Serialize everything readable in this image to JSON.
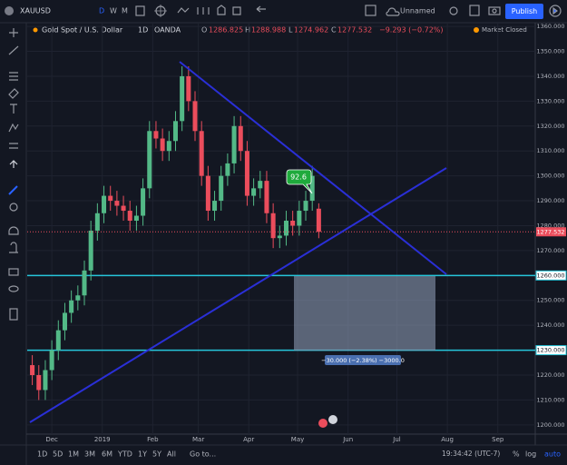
{
  "toolbar": {
    "symbol": "XAUUSD",
    "intervals": [
      "D",
      "W",
      "M"
    ],
    "layout_name": "Unnamed",
    "publish": "Publish"
  },
  "header": {
    "instrument": "Gold Spot / U.S. Dollar",
    "interval": "1D",
    "exchange": "OANDA",
    "ohlc_labels": [
      "O",
      "H",
      "L",
      "C"
    ],
    "change": "−9.293 (−0.72%)",
    "status": "Market Closed"
  },
  "chart_data": {
    "type": "candlestick",
    "x": [
      18,
      22,
      26,
      30,
      34,
      38,
      42,
      46,
      50,
      54,
      58,
      62,
      66,
      70,
      74,
      78,
      82,
      86,
      90,
      94,
      98,
      102,
      106,
      110,
      114,
      118,
      122,
      126,
      130,
      134,
      138,
      142,
      146,
      150,
      154,
      158,
      162,
      166,
      170,
      174,
      178,
      182,
      186,
      190,
      194
    ],
    "open": [
      1224,
      1220,
      1214,
      1222,
      1230,
      1238,
      1245,
      1250,
      1252,
      1262,
      1278,
      1285,
      1292,
      1290,
      1288,
      1286,
      1282,
      1284,
      1295,
      1318,
      1315,
      1310,
      1314,
      1322,
      1340,
      1330,
      1318,
      1300,
      1286,
      1290,
      1300,
      1305,
      1320,
      1310,
      1292,
      1295,
      1298,
      1285,
      1275,
      1276,
      1282,
      1280,
      1286,
      1290,
      1286.825
    ],
    "high": [
      1228,
      1224,
      1226,
      1234,
      1242,
      1249,
      1254,
      1256,
      1266,
      1282,
      1289,
      1296,
      1296,
      1294,
      1292,
      1290,
      1288,
      1299,
      1322,
      1322,
      1319,
      1318,
      1326,
      1344,
      1344,
      1334,
      1322,
      1304,
      1294,
      1304,
      1309,
      1324,
      1324,
      1314,
      1299,
      1302,
      1302,
      1289,
      1280,
      1286,
      1286,
      1290,
      1294,
      1304,
      1288.988
    ],
    "low": [
      1216,
      1210,
      1210,
      1218,
      1226,
      1234,
      1241,
      1246,
      1248,
      1258,
      1274,
      1281,
      1286,
      1284,
      1282,
      1278,
      1278,
      1280,
      1291,
      1311,
      1306,
      1306,
      1310,
      1318,
      1326,
      1314,
      1296,
      1282,
      1282,
      1286,
      1296,
      1301,
      1306,
      1288,
      1288,
      1291,
      1281,
      1271,
      1271,
      1272,
      1276,
      1276,
      1282,
      1286,
      1274.962
    ],
    "close": [
      1220,
      1214,
      1222,
      1230,
      1238,
      1245,
      1250,
      1252,
      1262,
      1278,
      1285,
      1292,
      1290,
      1288,
      1286,
      1282,
      1284,
      1295,
      1318,
      1315,
      1310,
      1314,
      1322,
      1340,
      1330,
      1318,
      1300,
      1286,
      1290,
      1300,
      1305,
      1320,
      1310,
      1292,
      1295,
      1298,
      1285,
      1275,
      1276,
      1282,
      1280,
      1286,
      1290,
      1300,
      1277.532
    ],
    "up_color": "#53b987",
    "down_color": "#eb4d5c",
    "xlim": [
      16,
      327
    ],
    "xticks": [
      {
        "value": 30,
        "label": "Dec"
      },
      {
        "value": 61,
        "label": "2019"
      },
      {
        "value": 92,
        "label": "Feb"
      },
      {
        "value": 120,
        "label": "Mar"
      },
      {
        "value": 151,
        "label": "Apr"
      },
      {
        "value": 181,
        "label": "May"
      },
      {
        "value": 212,
        "label": "Jun"
      },
      {
        "value": 242,
        "label": "Jul"
      },
      {
        "value": 273,
        "label": "Aug"
      },
      {
        "value": 304,
        "label": "Sep"
      }
    ],
    "ylim": [
      1196.3,
      1361.5
    ],
    "yticks": [
      {
        "value": 1200,
        "label": "1200.000"
      },
      {
        "value": 1210,
        "label": "1210.000"
      },
      {
        "value": 1220,
        "label": "1220.000"
      },
      {
        "value": 1230,
        "label": "1230.000"
      },
      {
        "value": 1240,
        "label": "1240.000"
      },
      {
        "value": 1250,
        "label": "1250.000"
      },
      {
        "value": 1260,
        "label": "1260.000"
      },
      {
        "value": 1270,
        "label": "1270.000"
      },
      {
        "value": 1280,
        "label": "1280.000"
      },
      {
        "value": 1290,
        "label": "1290.000"
      },
      {
        "value": 1300,
        "label": "1300.000"
      },
      {
        "value": 1310,
        "label": "1310.000"
      },
      {
        "value": 1320,
        "label": "1320.000"
      },
      {
        "value": 1330,
        "label": "1330.000"
      },
      {
        "value": 1340,
        "label": "1340.000"
      },
      {
        "value": 1350,
        "label": "1350.000"
      },
      {
        "value": 1360,
        "label": "1360.000"
      }
    ],
    "grid": true,
    "hlines": [
      {
        "value": 1260,
        "label": "1260.000"
      },
      {
        "value": 1230,
        "label": "1230.000"
      }
    ],
    "hline_color": "#26c6da",
    "measure_label": "−30.000 (−2.38%) −3000.0",
    "annotation": "92.6"
  },
  "bottom_bar": {
    "ranges": [
      "1D",
      "5D",
      "1M",
      "3M",
      "6M",
      "YTD",
      "1Y",
      "5Y",
      "All"
    ],
    "goto": "Go to...",
    "clock": "19:34:42 (UTC-7)",
    "scale_options": [
      "%",
      "log",
      "auto"
    ]
  }
}
